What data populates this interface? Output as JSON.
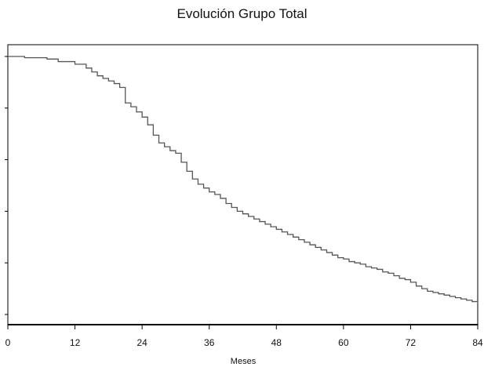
{
  "chart_data": {
    "type": "line",
    "step": true,
    "title": "Evolución Grupo Total",
    "xlabel": "Meses",
    "ylabel": "",
    "xlim": [
      0,
      84
    ],
    "ylim": [
      0,
      1
    ],
    "x_ticks": [
      0,
      12,
      24,
      36,
      48,
      60,
      72,
      84
    ],
    "x_tick_labels": [
      "0",
      "12",
      "24",
      "36",
      "48",
      "60",
      "72",
      "84"
    ],
    "y_ticks": [
      0,
      0.2,
      0.4,
      0.6,
      0.8,
      1.0
    ],
    "y_tick_labels": [
      "",
      "",
      "",
      "",
      "",
      ""
    ],
    "grid": false,
    "line_color": "#555555",
    "series": [
      {
        "x": [
          0,
          3,
          7,
          9,
          12,
          14,
          15,
          16,
          17,
          18,
          19,
          20,
          21,
          22,
          23,
          24,
          25,
          26,
          27,
          28,
          29,
          30,
          31,
          32,
          33,
          34,
          35,
          36,
          37,
          38,
          39,
          40,
          41,
          42,
          43,
          44,
          45,
          46,
          47,
          48,
          49,
          50,
          51,
          52,
          53,
          54,
          55,
          56,
          57,
          58,
          59,
          60,
          61,
          62,
          63,
          64,
          65,
          66,
          67,
          68,
          69,
          70,
          71,
          72,
          73,
          74,
          75,
          76,
          77,
          78,
          79,
          80,
          81,
          82,
          83,
          84
        ],
        "y": [
          1.0,
          0.995,
          0.99,
          0.98,
          0.97,
          0.955,
          0.94,
          0.925,
          0.915,
          0.905,
          0.895,
          0.88,
          0.82,
          0.805,
          0.785,
          0.765,
          0.735,
          0.695,
          0.665,
          0.65,
          0.635,
          0.625,
          0.59,
          0.555,
          0.525,
          0.505,
          0.49,
          0.475,
          0.465,
          0.45,
          0.43,
          0.415,
          0.4,
          0.39,
          0.38,
          0.37,
          0.36,
          0.35,
          0.34,
          0.33,
          0.32,
          0.31,
          0.3,
          0.29,
          0.28,
          0.27,
          0.26,
          0.25,
          0.24,
          0.23,
          0.22,
          0.215,
          0.205,
          0.2,
          0.195,
          0.185,
          0.18,
          0.175,
          0.165,
          0.16,
          0.15,
          0.14,
          0.135,
          0.125,
          0.11,
          0.1,
          0.09,
          0.085,
          0.08,
          0.075,
          0.07,
          0.065,
          0.06,
          0.055,
          0.05,
          0.045
        ]
      }
    ]
  }
}
